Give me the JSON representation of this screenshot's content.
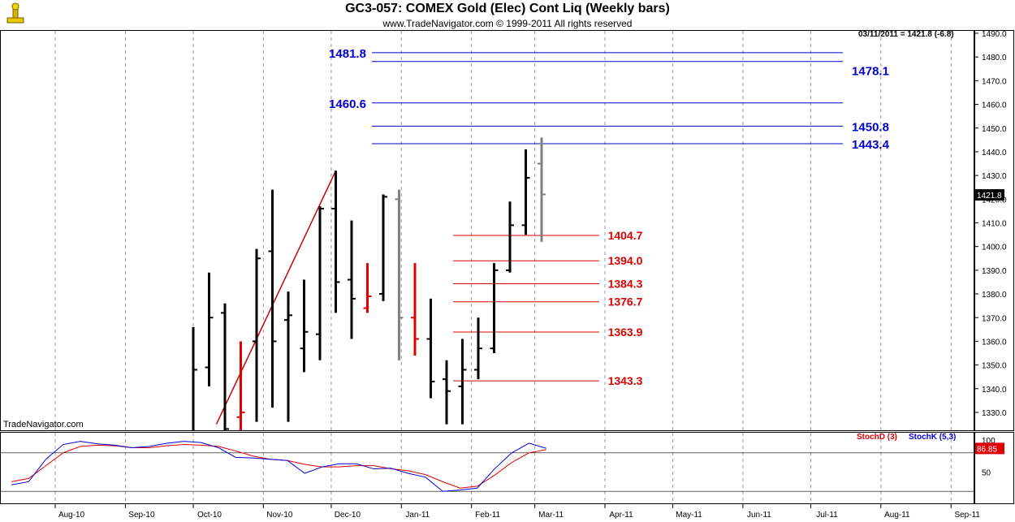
{
  "header": {
    "title": "GC3-057:  COMEX Gold (Elec) Cont Liq  (Weekly bars)",
    "subtitle": "www.TradeNavigator.com © 1999-2011 All rights reserved",
    "readout": "03/11/2011 = 1421.8 (-6.8)",
    "watermark": "TradeNavigator.com",
    "last_price_label": "1421.8",
    "stoch_last_label": "86.85"
  },
  "stoch_legend": {
    "d_label": "StochD (3)",
    "k_label": "StochK (5,3)",
    "d_color": "#e00000",
    "k_color": "#0000e0"
  },
  "colors": {
    "up_bar": "#000000",
    "down_bar": "#e00000",
    "current_bar": "#808080",
    "resistance": "#0000cc",
    "support": "#dd0000",
    "trendline": "#cc0000",
    "grid": "#999999"
  },
  "chart_data": [
    {
      "type": "ohlc",
      "title": "GC3-057:  COMEX Gold (Elec) Cont Liq  (Weekly bars)",
      "y_ticks": [
        1330,
        1340,
        1350,
        1360,
        1370,
        1380,
        1390,
        1400,
        1410,
        1420,
        1430,
        1440,
        1450,
        1460,
        1470,
        1480,
        1490
      ],
      "ylim": [
        1325,
        1493
      ],
      "x_ticks": [
        "Aug-10",
        "Sep-10",
        "Oct-10",
        "Nov-10",
        "Dec-10",
        "Jan-11",
        "Feb-11",
        "Mar-11",
        "Apr-11",
        "May-11",
        "Jun-11",
        "Jul-11",
        "Aug-11",
        "Sep-11"
      ],
      "grid": "vertical dashed at month starts",
      "bars": [
        {
          "date": "2010-10-01",
          "o": 1300,
          "h": 1366,
          "l": 1300,
          "c": 1348,
          "color": "up"
        },
        {
          "date": "2010-10-08",
          "o": 1349,
          "h": 1389,
          "l": 1341,
          "c": 1370,
          "color": "up"
        },
        {
          "date": "2010-10-15",
          "o": 1372,
          "h": 1376,
          "l": 1310,
          "c": 1323,
          "color": "up"
        },
        {
          "date": "2010-10-22",
          "o": 1328,
          "h": 1360,
          "l": 1310,
          "c": 1330,
          "color": "down"
        },
        {
          "date": "2010-10-29",
          "o": 1360,
          "h": 1399,
          "l": 1326,
          "c": 1395,
          "color": "up"
        },
        {
          "date": "2010-11-05",
          "o": 1398,
          "h": 1424,
          "l": 1332,
          "c": 1360,
          "color": "up"
        },
        {
          "date": "2010-11-12",
          "o": 1369,
          "h": 1381,
          "l": 1326,
          "c": 1371,
          "color": "up"
        },
        {
          "date": "2010-11-19",
          "o": 1357,
          "h": 1386,
          "l": 1347,
          "c": 1364,
          "color": "up"
        },
        {
          "date": "2010-11-26",
          "o": 1363,
          "h": 1417,
          "l": 1352,
          "c": 1416,
          "color": "up"
        },
        {
          "date": "2010-12-03",
          "o": 1416,
          "h": 1432,
          "l": 1372,
          "c": 1385,
          "color": "up"
        },
        {
          "date": "2010-12-10",
          "o": 1386,
          "h": 1411,
          "l": 1361,
          "c": 1378,
          "color": "up"
        },
        {
          "date": "2010-12-17",
          "o": 1374,
          "h": 1393,
          "l": 1372,
          "c": 1379,
          "color": "down"
        },
        {
          "date": "2010-12-24",
          "o": 1380,
          "h": 1422,
          "l": 1377,
          "c": 1421,
          "color": "up"
        },
        {
          "date": "2010-12-31",
          "o": 1420,
          "h": 1424,
          "l": 1352,
          "c": 1370,
          "color": "gray"
        },
        {
          "date": "2011-01-07",
          "o": 1370,
          "h": 1393,
          "l": 1354,
          "c": 1361,
          "color": "down"
        },
        {
          "date": "2011-01-14",
          "o": 1361,
          "h": 1378,
          "l": 1336,
          "c": 1343,
          "color": "up"
        },
        {
          "date": "2011-01-21",
          "o": 1344,
          "h": 1352,
          "l": 1325,
          "c": 1339,
          "color": "up"
        },
        {
          "date": "2011-01-28",
          "o": 1341,
          "h": 1361,
          "l": 1325,
          "c": 1348,
          "color": "up"
        },
        {
          "date": "2011-02-04",
          "o": 1348,
          "h": 1370,
          "l": 1344,
          "c": 1357,
          "color": "up"
        },
        {
          "date": "2011-02-11",
          "o": 1357,
          "h": 1393,
          "l": 1355,
          "c": 1390,
          "color": "up"
        },
        {
          "date": "2011-02-18",
          "o": 1390,
          "h": 1419,
          "l": 1389,
          "c": 1409,
          "color": "up"
        },
        {
          "date": "2011-02-25",
          "o": 1409,
          "h": 1441,
          "l": 1405,
          "c": 1429,
          "color": "up"
        },
        {
          "date": "2011-03-04",
          "o": 1435,
          "h": 1446,
          "l": 1402,
          "c": 1422,
          "color": "gray"
        }
      ],
      "resistance_levels": [
        1481.8,
        1478.1,
        1460.6,
        1450.8,
        1443.4
      ],
      "support_levels": [
        1404.7,
        1394.0,
        1384.3,
        1376.7,
        1363.9,
        1343.3
      ],
      "trendline": {
        "from": {
          "date": "2010-10-22",
          "price": 1325
        },
        "to": {
          "date": "2010-12-03",
          "price": 1432
        }
      },
      "last_price": 1421.8
    },
    {
      "type": "line",
      "title": "Stochastic",
      "y_ticks": [
        50,
        100
      ],
      "ylim": [
        0,
        120
      ],
      "reference_lines": [
        80,
        20
      ],
      "last_value": 86.85,
      "series": [
        {
          "name": "StochD (3)",
          "color": "#e00000",
          "values": [
            [
              0,
              35
            ],
            [
              1,
              40
            ],
            [
              2,
              60
            ],
            [
              3,
              80
            ],
            [
              4,
              90
            ],
            [
              5,
              92
            ],
            [
              6,
              91
            ],
            [
              7,
              88
            ],
            [
              8,
              88
            ],
            [
              9,
              91
            ],
            [
              10,
              93
            ],
            [
              11,
              92
            ],
            [
              12,
              90
            ],
            [
              13,
              83
            ],
            [
              14,
              75
            ],
            [
              15,
              70
            ],
            [
              16,
              68
            ],
            [
              17,
              62
            ],
            [
              18,
              58
            ],
            [
              19,
              58
            ],
            [
              20,
              60
            ],
            [
              21,
              60
            ],
            [
              22,
              55
            ],
            [
              23,
              52
            ],
            [
              24,
              46
            ],
            [
              25,
              35
            ],
            [
              26,
              25
            ],
            [
              27,
              28
            ],
            [
              28,
              45
            ],
            [
              29,
              65
            ],
            [
              30,
              80
            ],
            [
              31,
              85
            ]
          ]
        },
        {
          "name": "StochK (5,3)",
          "color": "#0000e0",
          "values": [
            [
              0,
              30
            ],
            [
              1,
              35
            ],
            [
              2,
              70
            ],
            [
              3,
              93
            ],
            [
              4,
              98
            ],
            [
              5,
              94
            ],
            [
              6,
              92
            ],
            [
              7,
              88
            ],
            [
              8,
              90
            ],
            [
              9,
              95
            ],
            [
              10,
              98
            ],
            [
              11,
              96
            ],
            [
              12,
              88
            ],
            [
              13,
              73
            ],
            [
              14,
              72
            ],
            [
              15,
              70
            ],
            [
              16,
              68
            ],
            [
              17,
              48
            ],
            [
              18,
              58
            ],
            [
              19,
              63
            ],
            [
              20,
              63
            ],
            [
              21,
              55
            ],
            [
              22,
              56
            ],
            [
              23,
              48
            ],
            [
              24,
              42
            ],
            [
              25,
              20
            ],
            [
              26,
              22
            ],
            [
              27,
              25
            ],
            [
              28,
              55
            ],
            [
              29,
              80
            ],
            [
              30,
              95
            ],
            [
              31,
              87
            ]
          ]
        }
      ]
    }
  ]
}
